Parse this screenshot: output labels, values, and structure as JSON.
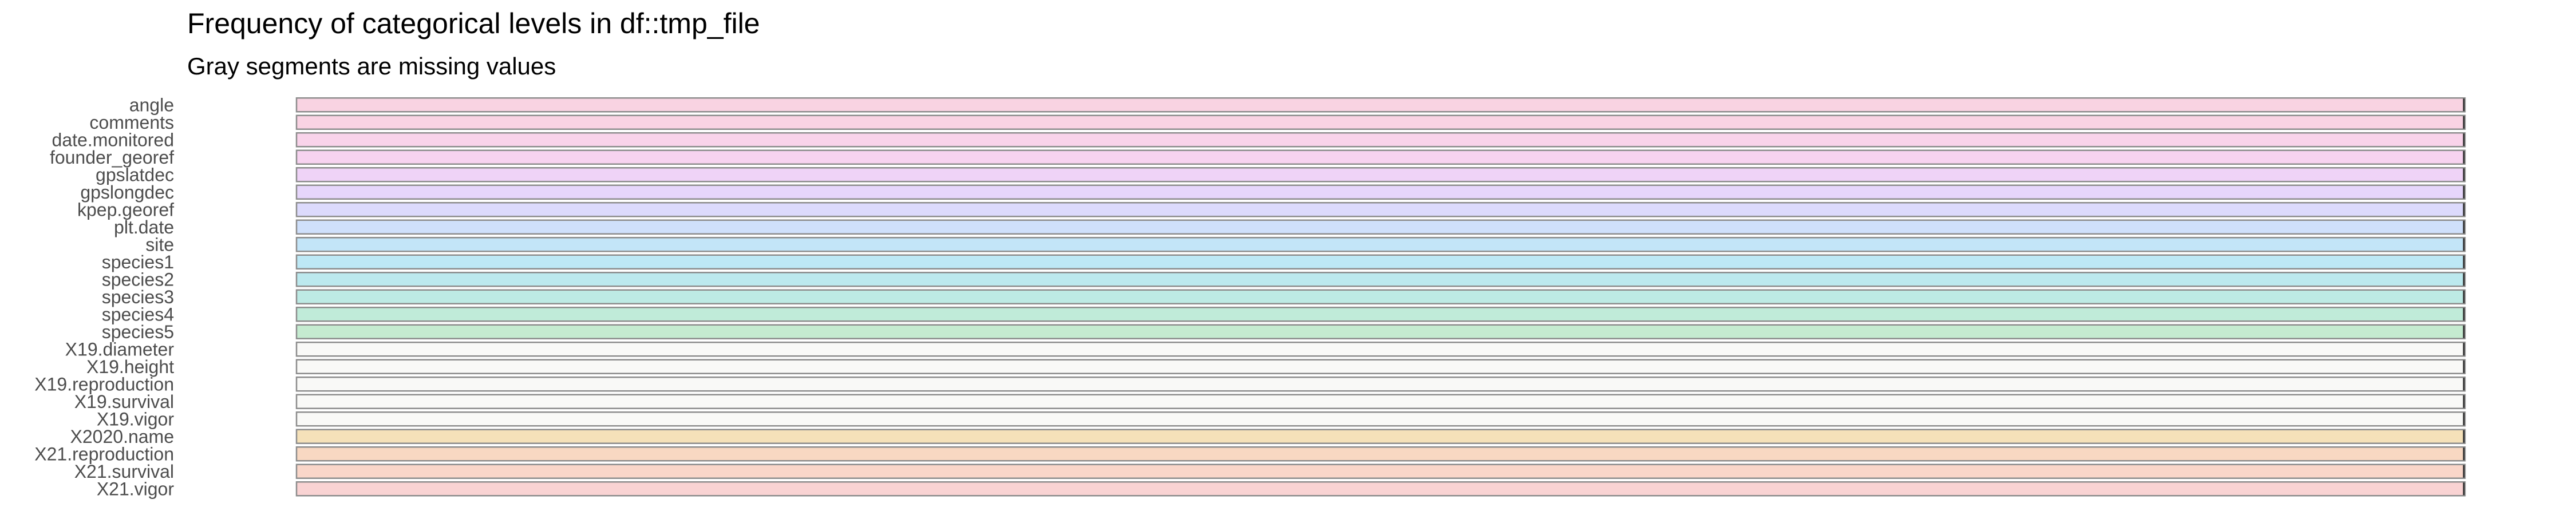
{
  "chart_data": {
    "type": "bar",
    "orientation": "horizontal",
    "stacked": true,
    "title": "Frequency of categorical levels in df::tmp_file",
    "subtitle": "Gray segments are missing values",
    "xlabel": "",
    "ylabel": "",
    "grid": false,
    "legend": "none",
    "xlim": [
      0,
      1
    ],
    "categories": [
      "angle",
      "comments",
      "date.monitored",
      "founder_georef",
      "gpslatdec",
      "gpslongdec",
      "kpep.georef",
      "plt.date",
      "site",
      "species1",
      "species2",
      "species3",
      "species4",
      "species5",
      "X19.diameter",
      "X19.height",
      "X19.reproduction",
      "X19.survival",
      "X19.vigor",
      "X2020.name",
      "X21.reproduction",
      "X21.survival",
      "X21.vigor"
    ],
    "colors": [
      "#f9d3e2",
      "#f9d3e3",
      "#f9d3ea",
      "#f7d3f0",
      "#efd3f7",
      "#e6d6fb",
      "#dcdafc",
      "#cfe0fb",
      "#c3e5f8",
      "#bde8f5",
      "#bce9ee",
      "#bdeae4",
      "#c0ebd9",
      "#c5ebd0",
      "#f9f9f7",
      "#f9f9f7",
      "#f9f9f7",
      "#f9f9f7",
      "#f9f9f7",
      "#f5e1b9",
      "#f8d8c2",
      "#f9d6c9",
      "#f9d3d3"
    ],
    "levels_full_fraction": [
      1,
      1,
      1,
      1,
      1,
      1,
      1,
      1,
      1,
      1,
      1,
      1,
      1,
      1,
      1,
      1,
      1,
      1,
      1,
      1,
      1,
      1,
      1
    ],
    "missing_fraction": [
      0,
      0,
      0,
      0,
      0,
      0,
      0,
      0,
      0,
      0,
      0,
      0,
      0,
      0,
      0,
      0,
      0,
      0,
      0,
      0,
      0,
      0,
      0
    ]
  }
}
